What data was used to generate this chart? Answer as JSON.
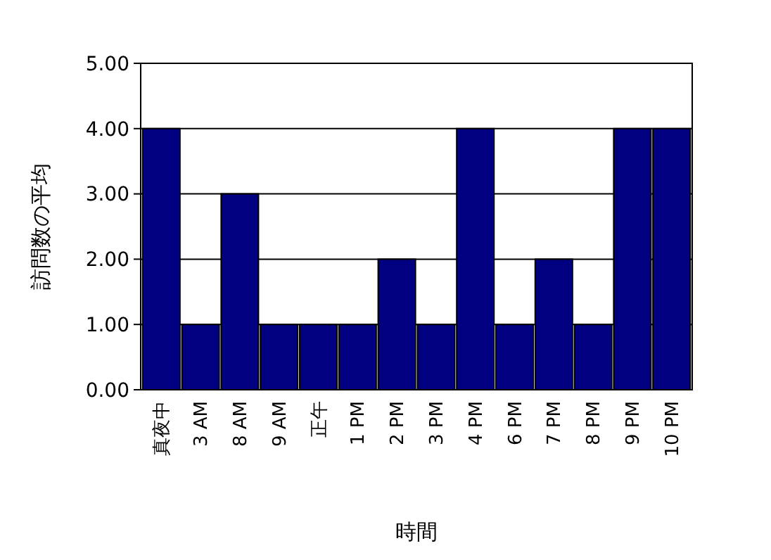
{
  "chart_data": {
    "type": "bar",
    "xlabel": "時間",
    "ylabel": "訪問数の平均",
    "categories": [
      "真夜中",
      "3 AM",
      "8 AM",
      "9 AM",
      "正午",
      "1 PM",
      "2 PM",
      "3 PM",
      "4 PM",
      "6 PM",
      "7 PM",
      "8 PM",
      "9 PM",
      "10 PM"
    ],
    "values": [
      4,
      1,
      3,
      1,
      1,
      1,
      2,
      1,
      4,
      1,
      2,
      1,
      4,
      4
    ],
    "color": "#000080",
    "ylim": [
      0,
      5
    ],
    "yticks": [
      {
        "value": 0,
        "label": "0.00"
      },
      {
        "value": 1,
        "label": "1.00"
      },
      {
        "value": 2,
        "label": "2.00"
      },
      {
        "value": 3,
        "label": "3.00"
      },
      {
        "value": 4,
        "label": "4.00"
      },
      {
        "value": 5,
        "label": "5.00"
      }
    ],
    "grid": "y"
  }
}
